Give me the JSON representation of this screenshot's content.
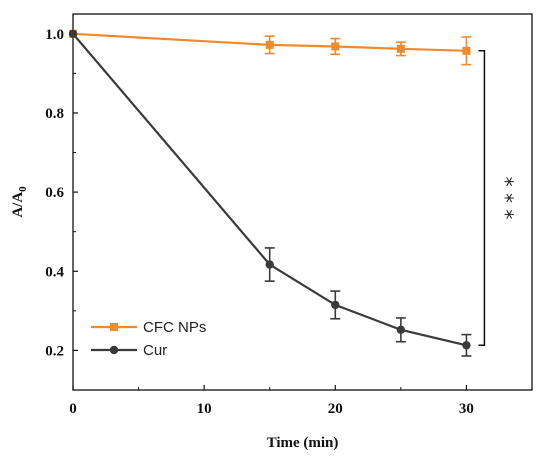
{
  "chart_data": {
    "type": "line",
    "title": "",
    "xlabel": "Time (min)",
    "ylabel": {
      "main": "A/A",
      "subscript": "0"
    },
    "xlim": [
      0,
      35
    ],
    "ylim": [
      0.1,
      1.05
    ],
    "xticks": [
      0,
      10,
      20,
      30
    ],
    "yticks": [
      0.2,
      0.4,
      0.6,
      0.8,
      1.0
    ],
    "xtick_labels": [
      "0",
      "10",
      "20",
      "30"
    ],
    "ytick_labels": [
      "0.2",
      "0.4",
      "0.6",
      "0.8",
      "1.0"
    ],
    "grid": false,
    "legend_position": "bottom-left",
    "series": [
      {
        "name": "CFC NPs",
        "color": "#F28A2C",
        "marker": "square",
        "x": [
          0,
          15,
          20,
          25,
          30
        ],
        "y": [
          1.0,
          0.972,
          0.968,
          0.962,
          0.957
        ],
        "err": [
          0,
          0.022,
          0.02,
          0.017,
          0.035
        ]
      },
      {
        "name": "Cur",
        "color": "#3A3A3A",
        "marker": "circle",
        "x": [
          0,
          15,
          20,
          25,
          30
        ],
        "y": [
          1.0,
          0.417,
          0.315,
          0.252,
          0.213
        ],
        "err": [
          0,
          0.042,
          0.035,
          0.03,
          0.027
        ]
      }
    ],
    "annotation": {
      "text": "* * *",
      "bracket_between": [
        "CFC NPs",
        "Cur"
      ],
      "at_x": 30
    }
  }
}
